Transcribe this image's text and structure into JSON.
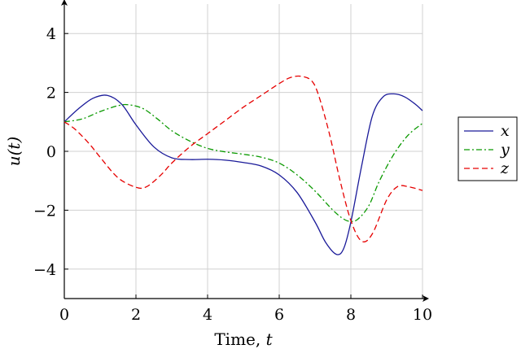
{
  "chart_data": {
    "type": "line",
    "title": "",
    "xlabel_prefix": "Time, ",
    "xlabel_var": "t",
    "ylabel": "u(t)",
    "xlim": [
      0,
      10
    ],
    "ylim": [
      -5,
      5
    ],
    "xticks": [
      0,
      2,
      4,
      6,
      8,
      10
    ],
    "yticks": [
      -4,
      -2,
      0,
      2,
      4
    ],
    "xtick_labels": [
      "0",
      "2",
      "4",
      "6",
      "8",
      "10"
    ],
    "ytick_labels": [
      "−4",
      "−2",
      "0",
      "2",
      "4"
    ],
    "grid": true,
    "legend_position": "right",
    "series": [
      {
        "name": "x",
        "color": "#1a1a99",
        "dash": "solid",
        "x": [
          0,
          0.4,
          0.8,
          1.2,
          1.6,
          2.0,
          2.5,
          3.0,
          3.5,
          4.0,
          4.5,
          5.0,
          5.5,
          6.0,
          6.5,
          7.0,
          7.3,
          7.6,
          7.8,
          8.0,
          8.3,
          8.6,
          8.9,
          9.2,
          9.5,
          9.8,
          10.0
        ],
        "y": [
          1.0,
          1.45,
          1.8,
          1.9,
          1.6,
          0.9,
          0.15,
          -0.22,
          -0.28,
          -0.27,
          -0.3,
          -0.38,
          -0.5,
          -0.8,
          -1.4,
          -2.4,
          -3.1,
          -3.5,
          -3.3,
          -2.4,
          -0.5,
          1.2,
          1.85,
          1.95,
          1.85,
          1.6,
          1.38
        ]
      },
      {
        "name": "y",
        "color": "#0a9900",
        "dash": "dashdot",
        "x": [
          0,
          0.5,
          1.0,
          1.5,
          1.8,
          2.2,
          2.6,
          3.0,
          3.5,
          4.0,
          4.5,
          5.0,
          5.5,
          6.0,
          6.5,
          7.0,
          7.5,
          7.8,
          8.0,
          8.2,
          8.5,
          8.8,
          9.2,
          9.6,
          10.0
        ],
        "y": [
          1.0,
          1.1,
          1.35,
          1.55,
          1.58,
          1.45,
          1.1,
          0.7,
          0.35,
          0.1,
          -0.02,
          -0.1,
          -0.2,
          -0.4,
          -0.8,
          -1.35,
          -2.0,
          -2.3,
          -2.38,
          -2.3,
          -1.85,
          -1.0,
          -0.1,
          0.55,
          0.95
        ]
      },
      {
        "name": "z",
        "color": "#e60000",
        "dash": "dashed",
        "x": [
          0,
          0.3,
          0.7,
          1.0,
          1.5,
          2.0,
          2.3,
          2.7,
          3.0,
          3.5,
          4.0,
          4.5,
          5.0,
          5.5,
          6.0,
          6.3,
          6.6,
          6.9,
          7.1,
          7.4,
          7.7,
          8.0,
          8.3,
          8.6,
          9.0,
          9.3,
          9.6,
          10.0
        ],
        "y": [
          1.0,
          0.75,
          0.25,
          -0.2,
          -0.9,
          -1.22,
          -1.2,
          -0.8,
          -0.4,
          0.15,
          0.6,
          1.05,
          1.5,
          1.9,
          2.3,
          2.5,
          2.55,
          2.4,
          1.9,
          0.6,
          -1.0,
          -2.35,
          -3.05,
          -2.8,
          -1.65,
          -1.2,
          -1.2,
          -1.33
        ]
      }
    ]
  }
}
